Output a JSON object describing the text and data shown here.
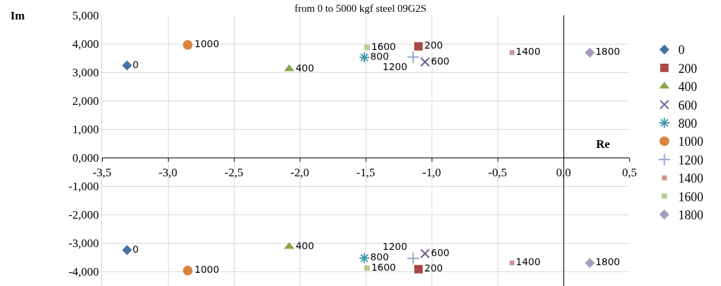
{
  "chart_data": {
    "type": "scatter",
    "title": "from 0 to 5000 kgf steel 09G2S",
    "xlabel": "Re",
    "ylabel": "Im",
    "xlim": [
      -3.5,
      0.5
    ],
    "xticks": [
      {
        "value": -3.5,
        "label": "-3,5"
      },
      {
        "value": -3,
        "label": "-3,0"
      },
      {
        "value": -2.5,
        "label": "-2,5"
      },
      {
        "value": -2,
        "label": "-2,0"
      },
      {
        "value": -1.5,
        "label": "-1,5"
      },
      {
        "value": -1,
        "label": "-1,0"
      },
      {
        "value": -0.5,
        "label": "-0,5"
      },
      {
        "value": 0,
        "label": "0,0"
      },
      {
        "value": 0.5,
        "label": "0,5"
      }
    ],
    "ylim": [
      -4.5,
      5
    ],
    "yticks": [
      {
        "value": -4,
        "label": "-4,000"
      },
      {
        "value": -3,
        "label": "-3,000"
      },
      {
        "value": -2,
        "label": "-2,000"
      },
      {
        "value": -1,
        "label": "-1,000"
      },
      {
        "value": 0,
        "label": "0,000"
      },
      {
        "value": 1,
        "label": "1,000"
      },
      {
        "value": 2,
        "label": "2,000"
      },
      {
        "value": 3,
        "label": "3,000"
      },
      {
        "value": 4,
        "label": "4,000"
      },
      {
        "value": 5,
        "label": "5,000"
      }
    ],
    "grid": true,
    "legend": "right",
    "series": [
      {
        "name": "0",
        "color": "#4573a7",
        "marker": "diamond",
        "x": [
          -3.31,
          -3.31
        ],
        "values": [
          3.24,
          -3.24
        ]
      },
      {
        "name": "200",
        "color": "#aa4643",
        "marker": "square",
        "x": [
          -1.1,
          -1.1
        ],
        "values": [
          3.91,
          -3.91
        ]
      },
      {
        "name": "400",
        "color": "#89a54e",
        "marker": "triangle",
        "x": [
          -2.08,
          -2.08
        ],
        "values": [
          3.12,
          -3.12
        ]
      },
      {
        "name": "600",
        "color": "#71588f",
        "marker": "cross",
        "x": [
          -1.05,
          -1.05
        ],
        "values": [
          3.36,
          -3.36
        ]
      },
      {
        "name": "800",
        "color": "#4198af",
        "marker": "cross",
        "x": [
          -1.51,
          -1.51
        ],
        "values": [
          3.52,
          -3.52
        ]
      },
      {
        "name": "1000",
        "color": "#db843d",
        "marker": "circle",
        "x": [
          -2.85,
          -2.85
        ],
        "values": [
          3.96,
          -3.96
        ]
      },
      {
        "name": "1200",
        "color": "#93a9cf",
        "marker": "cross",
        "x": [
          -1.14,
          -1.14
        ],
        "values": [
          3.53,
          -3.53
        ]
      },
      {
        "name": "1400",
        "color": "#d19392",
        "marker": "square",
        "x": [
          -0.39,
          -0.39
        ],
        "values": [
          3.69,
          -3.69
        ]
      },
      {
        "name": "1600",
        "color": "#b9cd96",
        "marker": "square",
        "x": [
          -1.49,
          -1.49
        ],
        "values": [
          3.87,
          -3.87
        ]
      },
      {
        "name": "1800",
        "color": "#a99bbd",
        "marker": "diamond",
        "x": [
          0.2,
          0.2
        ],
        "values": [
          3.69,
          -3.69
        ]
      }
    ]
  }
}
